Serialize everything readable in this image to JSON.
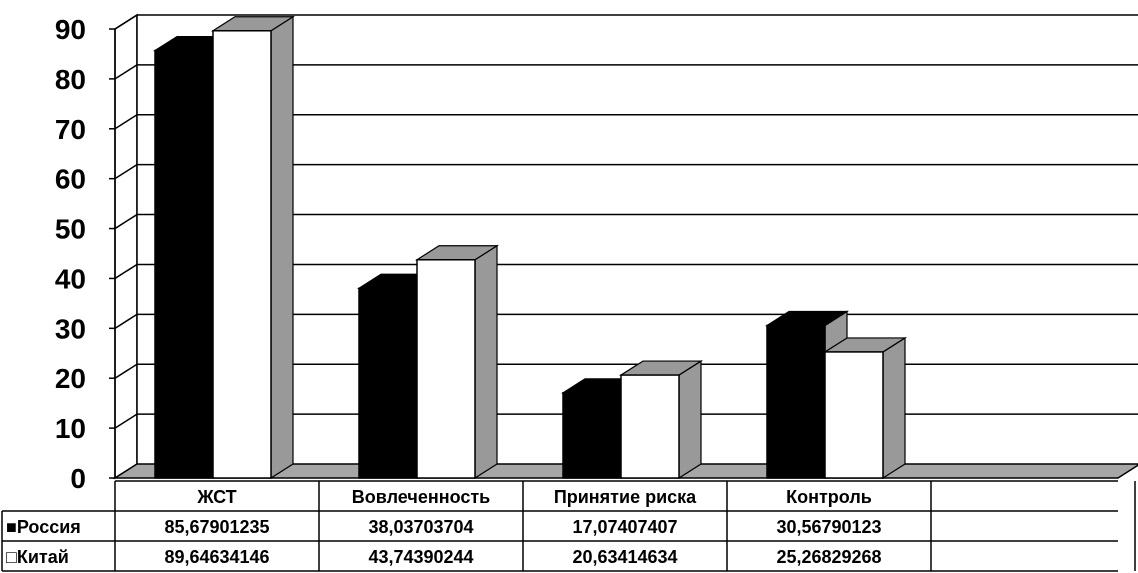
{
  "chart_data": {
    "type": "bar",
    "title": "",
    "xlabel": "",
    "ylabel": "",
    "ylim": [
      0,
      90
    ],
    "yticks": [
      0,
      10,
      20,
      30,
      40,
      50,
      60,
      70,
      80,
      90
    ],
    "grid": true,
    "style": "3d-column-with-data-table",
    "categories": [
      "ЖСТ",
      "Вовлеченность",
      "Принятие риска",
      "Контроль",
      ""
    ],
    "series": [
      {
        "name": "Россия",
        "color": "#000000",
        "legend_marker": "■",
        "values": [
          85.67901235,
          38.03703704,
          17.07407407,
          30.56790123,
          null
        ],
        "labels": [
          "85,67901235",
          "38,03703704",
          "17,07407407",
          "30,56790123",
          ""
        ]
      },
      {
        "name": "Китай",
        "color": "#ffffff",
        "legend_marker": "□",
        "values": [
          89.64634146,
          43.74390244,
          20.63414634,
          25.26829268,
          null
        ],
        "labels": [
          "89,64634146",
          "43,74390244",
          "20,63414634",
          "25,26829268",
          ""
        ]
      }
    ]
  },
  "colors": {
    "side_face": "#999999",
    "top_face": "#999999",
    "floor": "#a6a6a6",
    "grid": "#000000"
  }
}
